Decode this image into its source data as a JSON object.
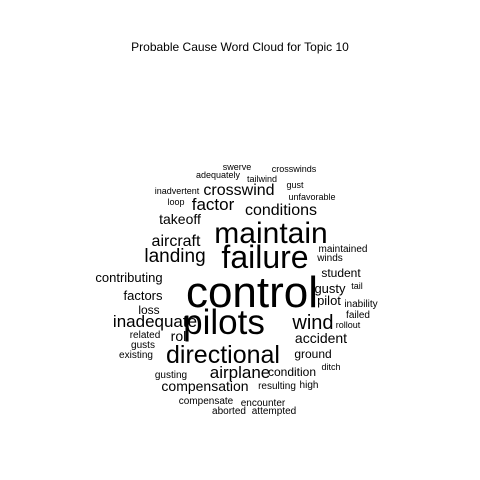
{
  "title": "Probable Cause Word Cloud for Topic 10",
  "colors": {
    "background": "#ffffff",
    "text": "#000000"
  },
  "words": [
    "control",
    "pilots",
    "failure",
    "maintain",
    "directional",
    "landing",
    "wind",
    "inadequate",
    "conditions",
    "crosswind",
    "factor",
    "aircraft",
    "airplane",
    "compensation",
    "accident",
    "takeoff",
    "roll",
    "contributing",
    "factors",
    "gusty",
    "pilot",
    "condition",
    "ground",
    "student",
    "loss",
    "related",
    "gusts",
    "existing",
    "gusting",
    "resulting",
    "high",
    "compensate",
    "encounter",
    "aborted",
    "attempted",
    "maintained",
    "winds",
    "inability",
    "failed",
    "rollout",
    "tail",
    "ditch",
    "swerve",
    "crosswinds",
    "adequately",
    "tailwind",
    "gust",
    "inadvertent",
    "unfavorable",
    "loop"
  ]
}
